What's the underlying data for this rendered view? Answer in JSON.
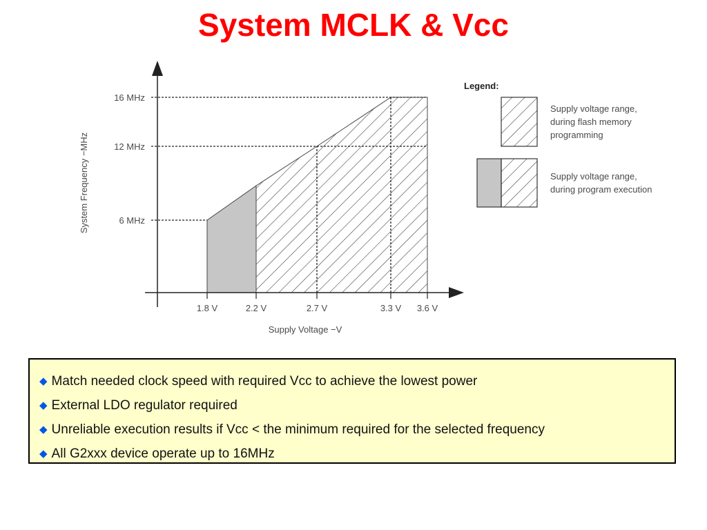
{
  "slide": {
    "title": "System MCLK & Vcc"
  },
  "colors": {
    "title": "#ff0000",
    "bullet_marker": "#0057e7",
    "notes_background": "#ffffcc",
    "program_execution_fill": "#c6c6c6",
    "hatch": "#333333"
  },
  "chart_data": {
    "type": "area",
    "xlabel": "Supply Voltage −V",
    "ylabel": "System Frequency −MHz",
    "x_ticks": [
      {
        "value": 1.8,
        "label": "1.8 V"
      },
      {
        "value": 2.2,
        "label": "2.2 V"
      },
      {
        "value": 2.7,
        "label": "2.7 V"
      },
      {
        "value": 3.3,
        "label": "3.3 V"
      },
      {
        "value": 3.6,
        "label": "3.6 V"
      }
    ],
    "y_ticks": [
      {
        "value": 6,
        "label": "6 MHz"
      },
      {
        "value": 12,
        "label": "12 MHz"
      },
      {
        "value": 16,
        "label": "16 MHz"
      }
    ],
    "series": [
      {
        "name": "Supply voltage range, during program execution",
        "legend_lines": [
          "Supply voltage range,",
          "during program execution"
        ],
        "style": "solid",
        "points": [
          [
            1.8,
            0
          ],
          [
            1.8,
            6
          ],
          [
            2.2,
            8.8
          ],
          [
            2.2,
            0
          ]
        ]
      },
      {
        "name": "Supply voltage range, during flash memory programming",
        "legend_lines": [
          "Supply voltage range,",
          "during flash memory",
          "programming"
        ],
        "style": "hatched",
        "points": [
          [
            2.2,
            0
          ],
          [
            2.2,
            8.8
          ],
          [
            2.7,
            12
          ],
          [
            3.3,
            16
          ],
          [
            3.6,
            16
          ],
          [
            3.6,
            0
          ]
        ]
      }
    ],
    "guides": {
      "horizontal": [
        {
          "y": 6,
          "x_end": 1.8
        },
        {
          "y": 12,
          "x_end": 3.6
        },
        {
          "y": 16,
          "x_end": 3.6
        }
      ],
      "vertical": [
        {
          "x": 2.7,
          "y_end": 12
        },
        {
          "x": 3.3,
          "y_end": 16
        }
      ]
    },
    "legend": {
      "title": "Legend:",
      "position": "right"
    }
  },
  "notes": {
    "bullets": [
      "Match needed clock speed with required Vcc to achieve the lowest power",
      "External LDO regulator required",
      "Unreliable execution results if Vcc < the minimum required for the selected frequency",
      "All G2xxx device operate up to 16MHz"
    ]
  }
}
